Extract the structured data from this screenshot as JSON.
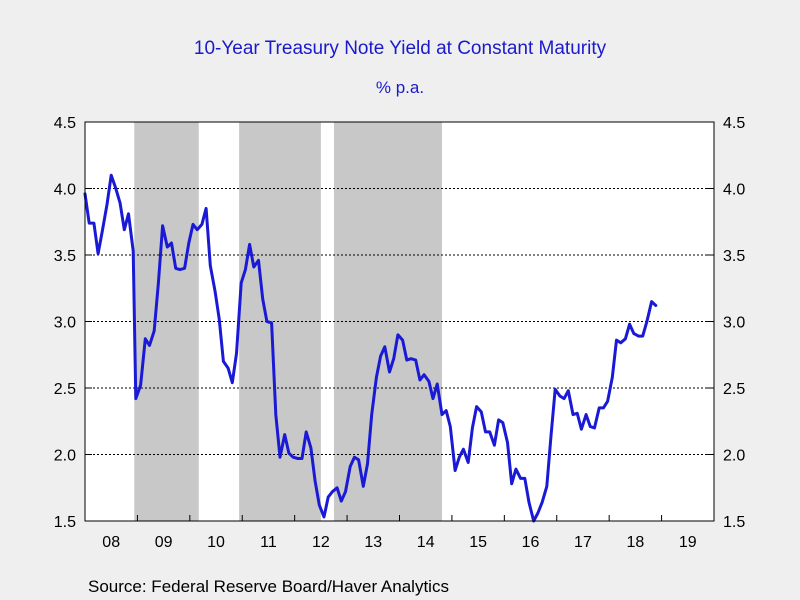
{
  "title": "10-Year Treasury Note Yield at Constant Maturity",
  "subtitle": "% p.a.",
  "source": "Source:  Federal Reserve Board/Haver Analytics",
  "colors": {
    "line": "#1a1ad6",
    "shade": "#c8c8c8",
    "plot_bg": "#ffffff",
    "title": "#1a1acc",
    "page_bg": "#efefef"
  },
  "chart_data": {
    "type": "line",
    "title": "10-Year Treasury Note Yield at Constant Maturity",
    "subtitle": "% p.a.",
    "xlabel": "",
    "ylabel": "",
    "xlim": [
      2007.5,
      2019.5
    ],
    "ylim": [
      1.5,
      4.5
    ],
    "y_ticks": [
      1.5,
      2.0,
      2.5,
      3.0,
      3.5,
      4.0,
      4.5
    ],
    "y_tick_labels": [
      "1.5",
      "2.0",
      "2.5",
      "3.0",
      "3.5",
      "4.0",
      "4.5"
    ],
    "x_tick_labels": [
      {
        "label": "08",
        "x": 2008.0
      },
      {
        "label": "09",
        "x": 2009.0
      },
      {
        "label": "10",
        "x": 2010.0
      },
      {
        "label": "11",
        "x": 2011.0
      },
      {
        "label": "12",
        "x": 2012.0
      },
      {
        "label": "13",
        "x": 2013.0
      },
      {
        "label": "14",
        "x": 2014.0
      },
      {
        "label": "15",
        "x": 2015.0
      },
      {
        "label": "16",
        "x": 2016.0
      },
      {
        "label": "17",
        "x": 2017.0
      },
      {
        "label": "18",
        "x": 2018.0
      },
      {
        "label": "19",
        "x": 2019.0
      }
    ],
    "grid": "horizontal dotted",
    "legend": "none",
    "shaded_regions": [
      {
        "start": 2008.44,
        "end": 2009.67
      },
      {
        "start": 2010.44,
        "end": 2012.0
      },
      {
        "start": 2012.25,
        "end": 2014.31
      }
    ],
    "series": [
      {
        "values": [
          [
            2007.5,
            3.96
          ],
          [
            2007.58,
            3.74
          ],
          [
            2007.67,
            3.74
          ],
          [
            2007.75,
            3.51
          ],
          [
            2007.83,
            3.68
          ],
          [
            2007.92,
            3.88
          ],
          [
            2008.0,
            4.1
          ],
          [
            2008.08,
            4.01
          ],
          [
            2008.17,
            3.89
          ],
          [
            2008.25,
            3.69
          ],
          [
            2008.33,
            3.81
          ],
          [
            2008.42,
            3.53
          ],
          [
            2008.47,
            2.42
          ],
          [
            2008.56,
            2.52
          ],
          [
            2008.65,
            2.87
          ],
          [
            2008.73,
            2.82
          ],
          [
            2008.82,
            2.93
          ],
          [
            2008.9,
            3.29
          ],
          [
            2008.98,
            3.72
          ],
          [
            2009.07,
            3.56
          ],
          [
            2009.15,
            3.59
          ],
          [
            2009.23,
            3.4
          ],
          [
            2009.31,
            3.39
          ],
          [
            2009.4,
            3.4
          ],
          [
            2009.48,
            3.59
          ],
          [
            2009.56,
            3.73
          ],
          [
            2009.64,
            3.69
          ],
          [
            2009.73,
            3.73
          ],
          [
            2009.81,
            3.85
          ],
          [
            2009.89,
            3.42
          ],
          [
            2009.98,
            3.23
          ],
          [
            2010.06,
            3.02
          ],
          [
            2010.14,
            2.7
          ],
          [
            2010.23,
            2.65
          ],
          [
            2010.31,
            2.54
          ],
          [
            2010.39,
            2.76
          ],
          [
            2010.48,
            3.29
          ],
          [
            2010.56,
            3.39
          ],
          [
            2010.64,
            3.58
          ],
          [
            2010.72,
            3.41
          ],
          [
            2010.81,
            3.46
          ],
          [
            2010.89,
            3.17
          ],
          [
            2010.97,
            3.0
          ],
          [
            2011.06,
            2.99
          ],
          [
            2011.14,
            2.3
          ],
          [
            2011.22,
            1.98
          ],
          [
            2011.31,
            2.15
          ],
          [
            2011.39,
            2.01
          ],
          [
            2011.47,
            1.98
          ],
          [
            2011.56,
            1.97
          ],
          [
            2011.64,
            1.97
          ],
          [
            2011.72,
            2.17
          ],
          [
            2011.81,
            2.05
          ],
          [
            2011.89,
            1.8
          ],
          [
            2011.97,
            1.62
          ],
          [
            2012.06,
            1.53
          ],
          [
            2012.14,
            1.68
          ],
          [
            2012.22,
            1.72
          ],
          [
            2012.31,
            1.75
          ],
          [
            2012.39,
            1.65
          ],
          [
            2012.47,
            1.72
          ],
          [
            2012.56,
            1.91
          ],
          [
            2012.64,
            1.98
          ],
          [
            2012.72,
            1.96
          ],
          [
            2012.81,
            1.76
          ],
          [
            2012.89,
            1.93
          ],
          [
            2012.97,
            2.3
          ],
          [
            2013.06,
            2.58
          ],
          [
            2013.14,
            2.74
          ],
          [
            2013.22,
            2.81
          ],
          [
            2013.31,
            2.62
          ],
          [
            2013.39,
            2.72
          ],
          [
            2013.47,
            2.9
          ],
          [
            2013.56,
            2.86
          ],
          [
            2013.64,
            2.71
          ],
          [
            2013.72,
            2.72
          ],
          [
            2013.81,
            2.71
          ],
          [
            2013.89,
            2.56
          ],
          [
            2013.97,
            2.6
          ],
          [
            2014.06,
            2.55
          ],
          [
            2014.14,
            2.42
          ],
          [
            2014.22,
            2.53
          ],
          [
            2014.31,
            2.3
          ],
          [
            2014.39,
            2.33
          ],
          [
            2014.47,
            2.21
          ],
          [
            2014.56,
            1.88
          ],
          [
            2014.64,
            1.98
          ],
          [
            2014.72,
            2.04
          ],
          [
            2014.81,
            1.94
          ],
          [
            2014.89,
            2.2
          ],
          [
            2014.97,
            2.36
          ],
          [
            2015.06,
            2.32
          ],
          [
            2015.14,
            2.17
          ],
          [
            2015.22,
            2.17
          ],
          [
            2015.31,
            2.07
          ],
          [
            2015.39,
            2.26
          ],
          [
            2015.47,
            2.24
          ],
          [
            2015.56,
            2.09
          ],
          [
            2015.64,
            1.78
          ],
          [
            2015.72,
            1.89
          ],
          [
            2015.81,
            1.82
          ],
          [
            2015.89,
            1.82
          ],
          [
            2015.97,
            1.64
          ],
          [
            2016.06,
            1.5
          ],
          [
            2016.14,
            1.56
          ],
          [
            2016.22,
            1.64
          ],
          [
            2016.31,
            1.76
          ],
          [
            2016.39,
            2.14
          ],
          [
            2016.47,
            2.49
          ],
          [
            2016.56,
            2.44
          ],
          [
            2016.64,
            2.42
          ],
          [
            2016.72,
            2.48
          ],
          [
            2016.81,
            2.3
          ],
          [
            2016.89,
            2.31
          ],
          [
            2016.97,
            2.19
          ],
          [
            2017.06,
            2.3
          ],
          [
            2017.14,
            2.21
          ],
          [
            2017.22,
            2.2
          ],
          [
            2017.31,
            2.35
          ],
          [
            2017.39,
            2.35
          ],
          [
            2017.47,
            2.4
          ],
          [
            2017.56,
            2.58
          ],
          [
            2017.64,
            2.86
          ],
          [
            2017.72,
            2.84
          ],
          [
            2017.81,
            2.87
          ],
          [
            2017.89,
            2.98
          ],
          [
            2017.97,
            2.91
          ],
          [
            2018.06,
            2.89
          ],
          [
            2018.14,
            2.89
          ],
          [
            2018.22,
            3.0
          ],
          [
            2018.31,
            3.15
          ],
          [
            2018.39,
            3.12
          ]
        ]
      }
    ]
  }
}
